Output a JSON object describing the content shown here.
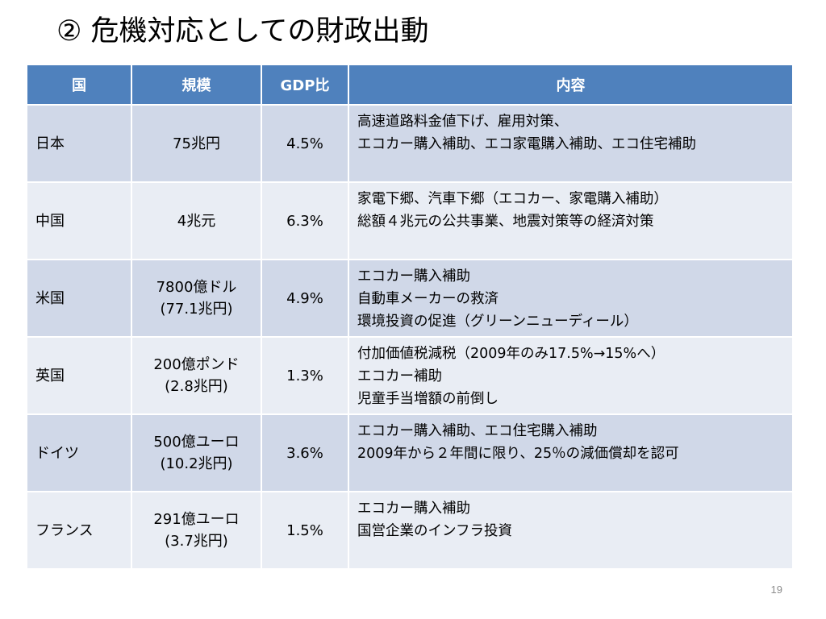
{
  "slide": {
    "title": "② 危機対応としての財政出動",
    "page_number": "19"
  },
  "table": {
    "headers": {
      "country": "国",
      "scale": "規模",
      "gdp_ratio": "GDP比",
      "content": "内容"
    },
    "rows": [
      {
        "country": "日本",
        "scale": [
          "75兆円"
        ],
        "gdp_ratio": "4.5%",
        "content": [
          "高速道路料金値下げ、雇用対策、",
          "エコカー購入補助、エコ家電購入補助、エコ住宅補助"
        ]
      },
      {
        "country": "中国",
        "scale": [
          "4兆元"
        ],
        "gdp_ratio": "6.3%",
        "content": [
          "家電下郷、汽車下郷（エコカー、家電購入補助）",
          "総額４兆元の公共事業、地震対策等の経済対策"
        ]
      },
      {
        "country": "米国",
        "scale": [
          "7800億ドル",
          "(77.1兆円)"
        ],
        "gdp_ratio": "4.9%",
        "content": [
          "エコカー購入補助",
          "自動車メーカーの救済",
          "環境投資の促進（グリーンニューディール）"
        ]
      },
      {
        "country": "英国",
        "scale": [
          "200億ポンド",
          "(2.8兆円)"
        ],
        "gdp_ratio": "1.3%",
        "content": [
          "付加価値税減税（2009年のみ17.5%→15%へ）",
          "エコカー補助",
          "児童手当増額の前倒し"
        ]
      },
      {
        "country": "ドイツ",
        "scale": [
          "500億ユーロ",
          "(10.2兆円)"
        ],
        "gdp_ratio": "3.6%",
        "content": [
          "エコカー購入補助、エコ住宅購入補助",
          "2009年から２年間に限り、25％の減価償却を認可"
        ]
      },
      {
        "country": "フランス",
        "scale": [
          "291億ユーロ",
          "(3.7兆円)"
        ],
        "gdp_ratio": "1.5%",
        "content": [
          "エコカー購入補助",
          "国営企業のインフラ投資"
        ]
      }
    ]
  }
}
